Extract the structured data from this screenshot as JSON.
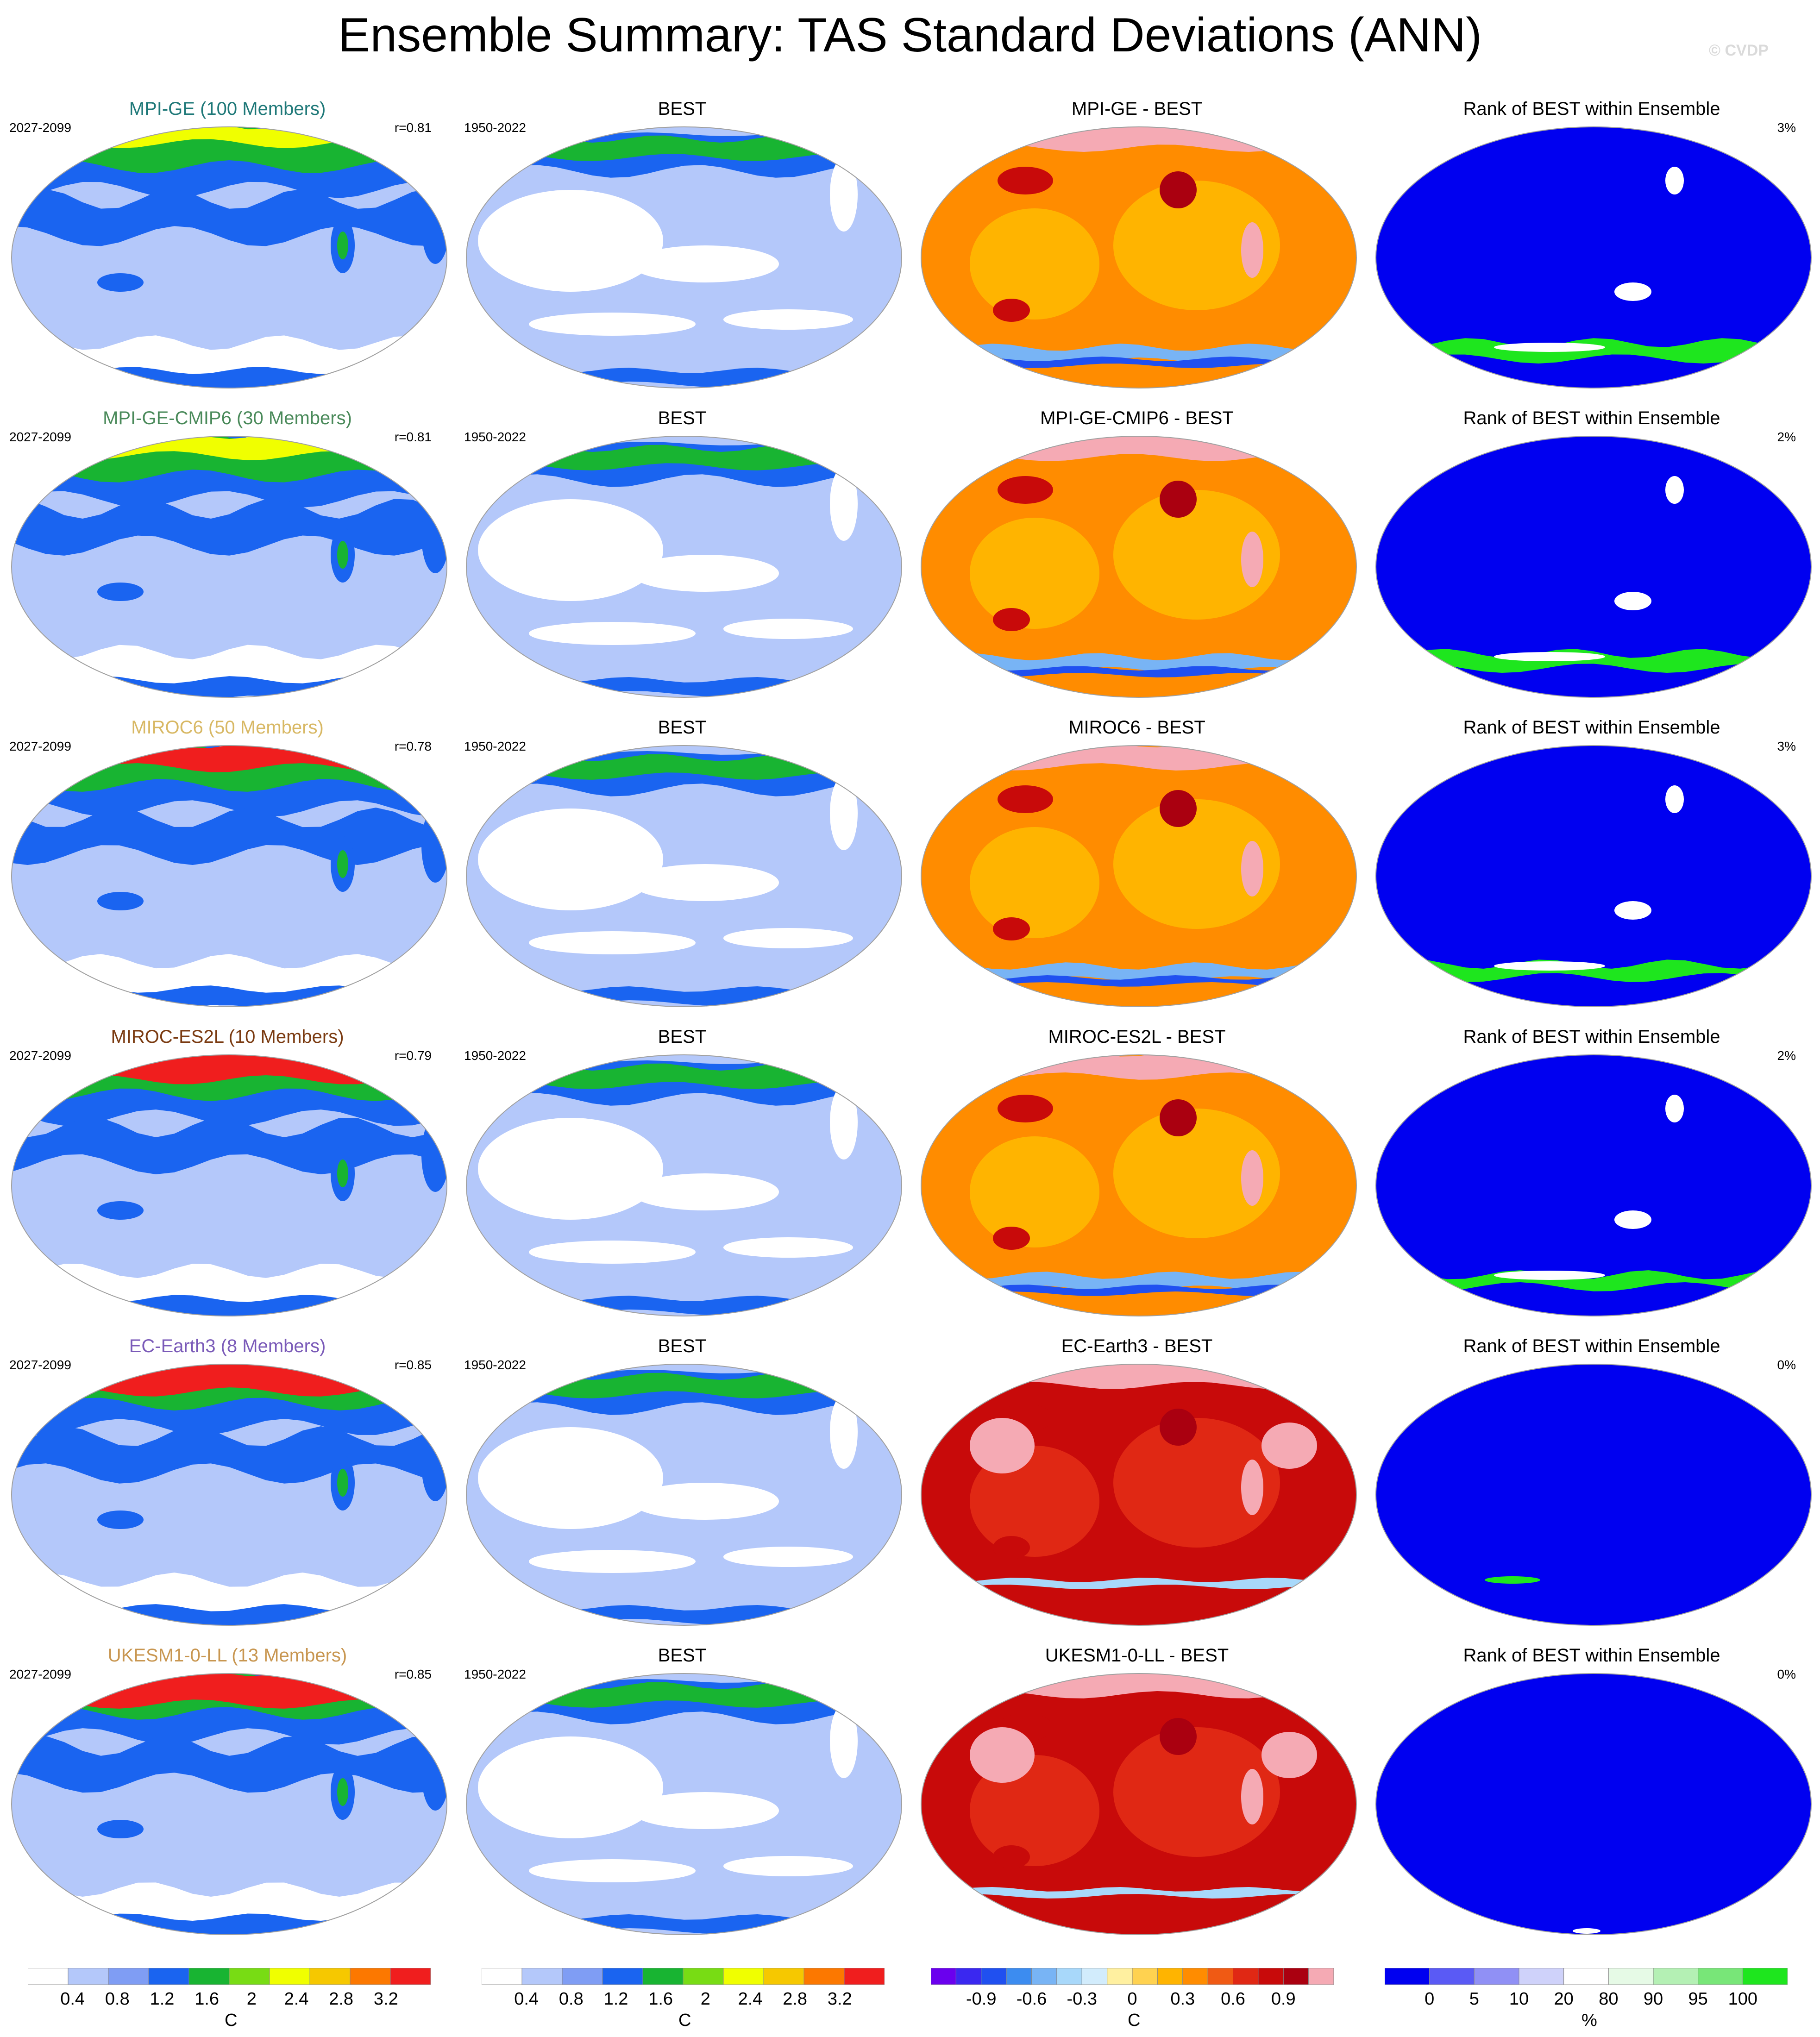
{
  "title": "Ensemble Summary: TAS Standard Deviations (ANN)",
  "watermark": "© CVDP",
  "colors": {
    "mean_levels": [
      "#ffffff",
      "#b4c8fa",
      "#7f9df4",
      "#1a64f0",
      "#18b432",
      "#78dc14",
      "#f0ff00",
      "#f6c800",
      "#fc7800",
      "#f01e1e"
    ],
    "diff_levels": [
      "#6a00ee",
      "#3a28f0",
      "#2050f0",
      "#3c8cf0",
      "#78b4f5",
      "#a8d8fa",
      "#d2ecfc",
      "#fff0a0",
      "#ffd250",
      "#ffb400",
      "#ff8c00",
      "#f05a14",
      "#e02814",
      "#c80a0a",
      "#aa0010",
      "#f5aab4"
    ],
    "rank_levels": [
      "#0000f0",
      "#5a5af5",
      "#9090f5",
      "#cfd2fa",
      "#ffffff",
      "#e6fae6",
      "#b4f0b4",
      "#78e678",
      "#1ee61e"
    ]
  },
  "rows": [
    {
      "model": "MPI-GE (100 Members)",
      "model_color": "#1e7878",
      "model_period": "2027-2099",
      "r": "r=0.81",
      "obs_title": "BEST",
      "obs_period": "1950-2022",
      "diff_title": "MPI-GE - BEST",
      "rank_title": "Rank of BEST within Ensemble",
      "rank_pct": "3%"
    },
    {
      "model": "MPI-GE-CMIP6 (30 Members)",
      "model_color": "#4a8a5a",
      "model_period": "2027-2099",
      "r": "r=0.81",
      "obs_title": "BEST",
      "obs_period": "1950-2022",
      "diff_title": "MPI-GE-CMIP6 - BEST",
      "rank_title": "Rank of BEST within Ensemble",
      "rank_pct": "2%"
    },
    {
      "model": "MIROC6 (50 Members)",
      "model_color": "#d8b864",
      "model_period": "2027-2099",
      "r": "r=0.78",
      "obs_title": "BEST",
      "obs_period": "1950-2022",
      "diff_title": "MIROC6 - BEST",
      "rank_title": "Rank of BEST within Ensemble",
      "rank_pct": "3%"
    },
    {
      "model": "MIROC-ES2L (10 Members)",
      "model_color": "#7a3a10",
      "model_period": "2027-2099",
      "r": "r=0.79",
      "obs_title": "BEST",
      "obs_period": "1950-2022",
      "diff_title": "MIROC-ES2L - BEST",
      "rank_title": "Rank of BEST within Ensemble",
      "rank_pct": "2%"
    },
    {
      "model": "EC-Earth3 (8 Members)",
      "model_color": "#7a5ab8",
      "model_period": "2027-2099",
      "r": "r=0.85",
      "obs_title": "BEST",
      "obs_period": "1950-2022",
      "diff_title": "EC-Earth3 - BEST",
      "rank_title": "Rank of BEST within Ensemble",
      "rank_pct": "0%"
    },
    {
      "model": "UKESM1-0-LL (13 Members)",
      "model_color": "#c89650",
      "model_period": "2027-2099",
      "r": "r=0.85",
      "obs_title": "BEST",
      "obs_period": "1950-2022",
      "diff_title": "UKESM1-0-LL - BEST",
      "rank_title": "Rank of BEST within Ensemble",
      "rank_pct": "0%"
    }
  ],
  "chart_data": {
    "type": "heatmap",
    "title": "Ensemble Summary: TAS Standard Deviations (ANN)",
    "colorbars": [
      {
        "name": "model",
        "tick_labels": [
          "0.4",
          "0.8",
          "1.2",
          "1.6",
          "2",
          "2.4",
          "2.8",
          "3.2"
        ],
        "unit": "C"
      },
      {
        "name": "obs",
        "tick_labels": [
          "0.4",
          "0.8",
          "1.2",
          "1.6",
          "2",
          "2.4",
          "2.8",
          "3.2"
        ],
        "unit": "C"
      },
      {
        "name": "diff",
        "tick_labels": [
          "-0.9",
          "-0.6",
          "-0.3",
          "0",
          "0.3",
          "0.6",
          "0.9"
        ],
        "unit": "C"
      },
      {
        "name": "rank",
        "tick_labels": [
          "0",
          "5",
          "10",
          "20",
          "80",
          "90",
          "95",
          "100"
        ],
        "unit": "%"
      }
    ]
  }
}
